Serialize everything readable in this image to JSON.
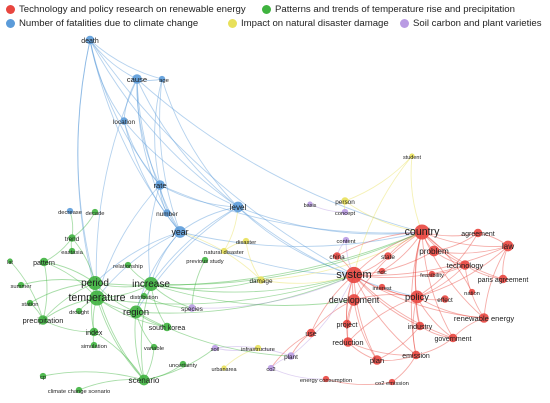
{
  "legend": [
    {
      "label": "Technology and policy research on renewable energy",
      "color": "#e8463f"
    },
    {
      "label": "Patterns and trends of temperature rise and precipitation",
      "color": "#3fb33f"
    },
    {
      "label": "Number of fatalities due to climate change",
      "color": "#5b9bd9"
    },
    {
      "label": "Impact on natural disaster damage",
      "color": "#e8e05a"
    },
    {
      "label": "Soil carbon and plant varieties",
      "color": "#b99be3"
    }
  ],
  "nodes": [
    {
      "id": "death",
      "label": "death",
      "cluster": 2,
      "size": 5
    },
    {
      "id": "cause",
      "label": "cause",
      "cluster": 2,
      "size": 6
    },
    {
      "id": "age",
      "label": "age",
      "cluster": 2,
      "size": 3
    },
    {
      "id": "location",
      "label": "location",
      "cluster": 2,
      "size": 4
    },
    {
      "id": "rate",
      "label": "rate",
      "cluster": 2,
      "size": 6
    },
    {
      "id": "level",
      "label": "level",
      "cluster": 2,
      "size": 7
    },
    {
      "id": "number",
      "label": "number",
      "cluster": 2,
      "size": 4
    },
    {
      "id": "year",
      "label": "year",
      "cluster": 2,
      "size": 8
    },
    {
      "id": "decrease",
      "label": "decrease",
      "cluster": 2,
      "size": 3
    },
    {
      "id": "decade",
      "label": "decade",
      "cluster": 1,
      "size": 3
    },
    {
      "id": "trend",
      "label": "trend",
      "cluster": 1,
      "size": 4
    },
    {
      "id": "eastasia",
      "label": "eastasia",
      "cluster": 1,
      "size": 3
    },
    {
      "id": "pattern",
      "label": "pattern",
      "cluster": 1,
      "size": 5
    },
    {
      "id": "lat",
      "label": "lat",
      "cluster": 1,
      "size": 2
    },
    {
      "id": "summer",
      "label": "summer",
      "cluster": 1,
      "size": 3
    },
    {
      "id": "station",
      "label": "station",
      "cluster": 1,
      "size": 3
    },
    {
      "id": "period",
      "label": "period",
      "cluster": 1,
      "size": 10
    },
    {
      "id": "temperature",
      "label": "temperature",
      "cluster": 1,
      "size": 11
    },
    {
      "id": "precipitation",
      "label": "precipitation",
      "cluster": 1,
      "size": 6
    },
    {
      "id": "drought",
      "label": "drought",
      "cluster": 1,
      "size": 3
    },
    {
      "id": "index",
      "label": "index",
      "cluster": 1,
      "size": 5
    },
    {
      "id": "simulation",
      "label": "simulation",
      "cluster": 1,
      "size": 3
    },
    {
      "id": "relationship",
      "label": "relationship",
      "cluster": 1,
      "size": 3
    },
    {
      "id": "increase",
      "label": "increase",
      "cluster": 1,
      "size": 10
    },
    {
      "id": "distribution",
      "label": "distribution",
      "cluster": 1,
      "size": 3
    },
    {
      "id": "region",
      "label": "region",
      "cluster": 1,
      "size": 9
    },
    {
      "id": "southkorea",
      "label": "south korea",
      "cluster": 1,
      "size": 5
    },
    {
      "id": "variable",
      "label": "variable",
      "cluster": 1,
      "size": 3
    },
    {
      "id": "uncertainty",
      "label": "uncertainty",
      "cluster": 1,
      "size": 3
    },
    {
      "id": "scenario",
      "label": "scenario",
      "cluster": 1,
      "size": 7
    },
    {
      "id": "ccscenario",
      "label": "climate change scenario",
      "cluster": 1,
      "size": 3
    },
    {
      "id": "cp",
      "label": "cp",
      "cluster": 1,
      "size": 3
    },
    {
      "id": "prevstudy",
      "label": "previous study",
      "cluster": 1,
      "size": 3
    },
    {
      "id": "species",
      "label": "species",
      "cluster": 4,
      "size": 4
    },
    {
      "id": "disaster",
      "label": "disaster",
      "cluster": 3,
      "size": 3
    },
    {
      "id": "natdisaster",
      "label": "natural disaster",
      "cluster": 3,
      "size": 3
    },
    {
      "id": "damage",
      "label": "damage",
      "cluster": 3,
      "size": 4
    },
    {
      "id": "basis",
      "label": "basis",
      "cluster": 4,
      "size": 2
    },
    {
      "id": "person",
      "label": "person",
      "cluster": 3,
      "size": 4
    },
    {
      "id": "concept",
      "label": "concept",
      "cluster": 4,
      "size": 3
    },
    {
      "id": "student",
      "label": "student",
      "cluster": 3,
      "size": 2
    },
    {
      "id": "content",
      "label": "content",
      "cluster": 4,
      "size": 3
    },
    {
      "id": "china",
      "label": "china",
      "cluster": 0,
      "size": 4
    },
    {
      "id": "country",
      "label": "country",
      "cluster": 0,
      "size": 11
    },
    {
      "id": "agreement",
      "label": "agreement",
      "cluster": 0,
      "size": 5
    },
    {
      "id": "problem",
      "label": "problem",
      "cluster": 0,
      "size": 7
    },
    {
      "id": "law",
      "label": "law",
      "cluster": 0,
      "size": 7
    },
    {
      "id": "state",
      "label": "state",
      "cluster": 0,
      "size": 4
    },
    {
      "id": "technology",
      "label": "technology",
      "cluster": 0,
      "size": 6
    },
    {
      "id": "system",
      "label": "system",
      "cluster": 0,
      "size": 12
    },
    {
      "id": "ndc",
      "label": "ndc",
      "cluster": 0,
      "size": 3
    },
    {
      "id": "feasibility",
      "label": "feasibility",
      "cluster": 0,
      "size": 3
    },
    {
      "id": "parisagreement",
      "label": "paris agreement",
      "cluster": 0,
      "size": 5
    },
    {
      "id": "interest",
      "label": "interest",
      "cluster": 0,
      "size": 3
    },
    {
      "id": "development",
      "label": "development",
      "cluster": 0,
      "size": 8
    },
    {
      "id": "policy",
      "label": "policy",
      "cluster": 0,
      "size": 9
    },
    {
      "id": "effect",
      "label": "effect",
      "cluster": 0,
      "size": 4
    },
    {
      "id": "nation",
      "label": "nation",
      "cluster": 0,
      "size": 3
    },
    {
      "id": "project",
      "label": "project",
      "cluster": 0,
      "size": 5
    },
    {
      "id": "renewable",
      "label": "renewable energy",
      "cluster": 0,
      "size": 6
    },
    {
      "id": "industry",
      "label": "industry",
      "cluster": 0,
      "size": 5
    },
    {
      "id": "use",
      "label": "use",
      "cluster": 0,
      "size": 5
    },
    {
      "id": "reduction",
      "label": "reduction",
      "cluster": 0,
      "size": 6
    },
    {
      "id": "government",
      "label": "government",
      "cluster": 0,
      "size": 5
    },
    {
      "id": "plan",
      "label": "plan",
      "cluster": 0,
      "size": 6
    },
    {
      "id": "emission",
      "label": "emission",
      "cluster": 0,
      "size": 5
    },
    {
      "id": "soil",
      "label": "soil",
      "cluster": 4,
      "size": 3
    },
    {
      "id": "infrastructure",
      "label": "infrastructure",
      "cluster": 3,
      "size": 3
    },
    {
      "id": "plant",
      "label": "plant",
      "cluster": 4,
      "size": 4
    },
    {
      "id": "urbanarea",
      "label": "urbanarea",
      "cluster": 3,
      "size": 2
    },
    {
      "id": "co2",
      "label": "co2",
      "cluster": 4,
      "size": 3
    },
    {
      "id": "energyconsumption",
      "label": "energy consumption",
      "cluster": 0,
      "size": 3
    },
    {
      "id": "co2emission",
      "label": "co2 emission",
      "cluster": 0,
      "size": 3
    }
  ]
}
